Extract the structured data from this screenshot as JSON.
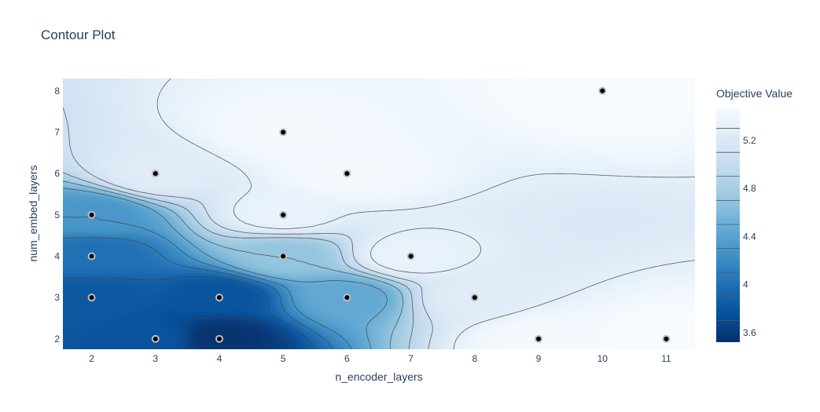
{
  "chart_data": {
    "type": "contour",
    "title": "Contour Plot",
    "xlabel": "n_encoder_layers",
    "ylabel": "num_embed_layers",
    "xlim": [
      1.55,
      11.45
    ],
    "ylim": [
      1.75,
      8.3
    ],
    "x_ticks": [
      2,
      3,
      4,
      5,
      6,
      7,
      8,
      9,
      10,
      11
    ],
    "y_ticks": [
      2,
      3,
      4,
      5,
      6,
      7,
      8
    ],
    "colorbar": {
      "title": "Objective Value",
      "range": [
        3.52,
        5.48
      ],
      "ticks": [
        3.6,
        4,
        4.4,
        4.8,
        5.2
      ],
      "tick_labels": [
        "3.6",
        "4",
        "4.4",
        "4.8",
        "5.2"
      ],
      "colorscale": [
        "#08306b",
        "#08519c",
        "#2171b5",
        "#4292c6",
        "#6baed6",
        "#9ecae1",
        "#c6dbef",
        "#deebf7",
        "#f7fbff"
      ]
    },
    "trials": [
      {
        "x": 10,
        "y": 8,
        "value": 5.48
      },
      {
        "x": 5,
        "y": 7,
        "value": 5.45
      },
      {
        "x": 3,
        "y": 6,
        "value": 5.25
      },
      {
        "x": 6,
        "y": 6,
        "value": 5.45
      },
      {
        "x": 2,
        "y": 5,
        "value": 4.3
      },
      {
        "x": 5,
        "y": 5,
        "value": 5.35
      },
      {
        "x": 2,
        "y": 4,
        "value": 4.0
      },
      {
        "x": 5,
        "y": 4,
        "value": 4.7
      },
      {
        "x": 7,
        "y": 4,
        "value": 5.35
      },
      {
        "x": 2,
        "y": 3,
        "value": 3.82
      },
      {
        "x": 4,
        "y": 3,
        "value": 3.78
      },
      {
        "x": 6,
        "y": 3,
        "value": 4.45
      },
      {
        "x": 8,
        "y": 3,
        "value": 5.25
      },
      {
        "x": 3,
        "y": 2,
        "value": 3.78
      },
      {
        "x": 4,
        "y": 2,
        "value": 3.55
      },
      {
        "x": 9,
        "y": 2,
        "value": 5.45
      },
      {
        "x": 11,
        "y": 2,
        "value": 5.48
      }
    ]
  }
}
